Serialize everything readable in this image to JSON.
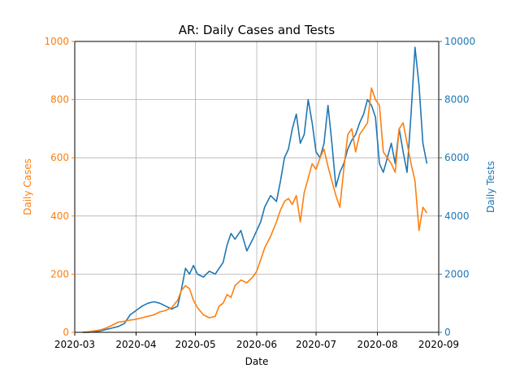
{
  "chart_data": {
    "type": "line",
    "title": "AR: Daily Cases and Tests",
    "xlabel": "Date",
    "ylabel_left": "Daily Cases",
    "ylabel_right": "Daily Tests",
    "x_start": "2020-03-01",
    "xlim": [
      "2020-03-01",
      "2020-09-01"
    ],
    "x_ticks": [
      "2020-03-01",
      "2020-04-01",
      "2020-05-01",
      "2020-06-01",
      "2020-07-01",
      "2020-08-01",
      "2020-09-01"
    ],
    "x_tick_labels": [
      "2020-03",
      "2020-04",
      "2020-05",
      "2020-06",
      "2020-07",
      "2020-08",
      "2020-09"
    ],
    "ylim_left": [
      0,
      1000
    ],
    "ylim_right": [
      0,
      10000
    ],
    "y_ticks_left": [
      0,
      200,
      400,
      600,
      800,
      1000
    ],
    "y_ticks_right": [
      0,
      2000,
      4000,
      6000,
      8000,
      10000
    ],
    "y_tick_labels_left": [
      "0",
      "200",
      "400",
      "600",
      "800",
      "1000"
    ],
    "y_tick_labels_right": [
      "0",
      "2000",
      "4000",
      "6000",
      "8000",
      "10000"
    ],
    "grid": true,
    "colors": {
      "cases": "#ff7f0e",
      "tests": "#1f77b4",
      "grid": "#b0b0b0"
    },
    "series": [
      {
        "name": "Daily Cases",
        "axis": "left",
        "color": "#ff7f0e",
        "x": [
          "2020-03-05",
          "2020-03-08",
          "2020-03-11",
          "2020-03-14",
          "2020-03-17",
          "2020-03-20",
          "2020-03-23",
          "2020-03-26",
          "2020-03-29",
          "2020-04-01",
          "2020-04-04",
          "2020-04-07",
          "2020-04-10",
          "2020-04-13",
          "2020-04-16",
          "2020-04-19",
          "2020-04-22",
          "2020-04-24",
          "2020-04-26",
          "2020-04-28",
          "2020-04-30",
          "2020-05-02",
          "2020-05-05",
          "2020-05-08",
          "2020-05-11",
          "2020-05-13",
          "2020-05-15",
          "2020-05-17",
          "2020-05-19",
          "2020-05-21",
          "2020-05-24",
          "2020-05-27",
          "2020-05-30",
          "2020-06-01",
          "2020-06-03",
          "2020-06-05",
          "2020-06-08",
          "2020-06-11",
          "2020-06-13",
          "2020-06-15",
          "2020-06-17",
          "2020-06-19",
          "2020-06-21",
          "2020-06-23",
          "2020-06-25",
          "2020-06-27",
          "2020-06-29",
          "2020-07-01",
          "2020-07-03",
          "2020-07-05",
          "2020-07-07",
          "2020-07-09",
          "2020-07-11",
          "2020-07-13",
          "2020-07-15",
          "2020-07-17",
          "2020-07-19",
          "2020-07-21",
          "2020-07-23",
          "2020-07-25",
          "2020-07-27",
          "2020-07-29",
          "2020-07-31",
          "2020-08-02",
          "2020-08-04",
          "2020-08-06",
          "2020-08-08",
          "2020-08-10",
          "2020-08-12",
          "2020-08-14",
          "2020-08-16",
          "2020-08-18",
          "2020-08-20",
          "2020-08-22",
          "2020-08-24",
          "2020-08-26"
        ],
        "values": [
          0,
          2,
          5,
          8,
          15,
          25,
          35,
          38,
          42,
          45,
          50,
          55,
          60,
          70,
          75,
          85,
          110,
          145,
          160,
          150,
          110,
          85,
          60,
          50,
          55,
          90,
          100,
          130,
          120,
          160,
          180,
          170,
          190,
          210,
          250,
          290,
          330,
          380,
          420,
          450,
          460,
          440,
          470,
          380,
          480,
          530,
          580,
          560,
          600,
          630,
          570,
          520,
          470,
          430,
          560,
          680,
          700,
          620,
          680,
          700,
          720,
          840,
          800,
          780,
          620,
          600,
          580,
          550,
          700,
          720,
          650,
          580,
          520,
          350,
          430,
          410
        ]
      },
      {
        "name": "Daily Tests",
        "axis": "right",
        "color": "#1f77b4",
        "x": [
          "2020-03-05",
          "2020-03-08",
          "2020-03-11",
          "2020-03-14",
          "2020-03-17",
          "2020-03-20",
          "2020-03-23",
          "2020-03-26",
          "2020-03-29",
          "2020-04-01",
          "2020-04-04",
          "2020-04-07",
          "2020-04-10",
          "2020-04-13",
          "2020-04-16",
          "2020-04-19",
          "2020-04-22",
          "2020-04-24",
          "2020-04-26",
          "2020-04-28",
          "2020-04-30",
          "2020-05-02",
          "2020-05-05",
          "2020-05-08",
          "2020-05-11",
          "2020-05-13",
          "2020-05-15",
          "2020-05-17",
          "2020-05-19",
          "2020-05-21",
          "2020-05-24",
          "2020-05-27",
          "2020-05-30",
          "2020-06-01",
          "2020-06-03",
          "2020-06-05",
          "2020-06-08",
          "2020-06-11",
          "2020-06-13",
          "2020-06-15",
          "2020-06-17",
          "2020-06-19",
          "2020-06-21",
          "2020-06-23",
          "2020-06-25",
          "2020-06-27",
          "2020-06-29",
          "2020-07-01",
          "2020-07-03",
          "2020-07-05",
          "2020-07-07",
          "2020-07-09",
          "2020-07-11",
          "2020-07-13",
          "2020-07-15",
          "2020-07-17",
          "2020-07-19",
          "2020-07-21",
          "2020-07-23",
          "2020-07-25",
          "2020-07-27",
          "2020-07-29",
          "2020-07-31",
          "2020-08-02",
          "2020-08-04",
          "2020-08-06",
          "2020-08-08",
          "2020-08-10",
          "2020-08-12",
          "2020-08-14",
          "2020-08-16",
          "2020-08-18",
          "2020-08-20",
          "2020-08-22",
          "2020-08-24",
          "2020-08-26"
        ],
        "values": [
          0,
          0,
          20,
          50,
          100,
          150,
          200,
          300,
          600,
          750,
          900,
          1000,
          1050,
          1000,
          900,
          800,
          900,
          1500,
          2200,
          2000,
          2300,
          2000,
          1900,
          2100,
          2000,
          2200,
          2400,
          3000,
          3400,
          3200,
          3500,
          2800,
          3200,
          3500,
          3800,
          4300,
          4700,
          4500,
          5200,
          6000,
          6300,
          7000,
          7500,
          6500,
          6800,
          8000,
          7200,
          6200,
          6000,
          6500,
          7800,
          6500,
          5000,
          5500,
          5800,
          6300,
          6600,
          6800,
          7200,
          7500,
          8000,
          7800,
          7400,
          5800,
          5500,
          6000,
          6500,
          5800,
          7000,
          6200,
          5500,
          7500,
          9800,
          8500,
          6500,
          5800
        ]
      }
    ]
  }
}
